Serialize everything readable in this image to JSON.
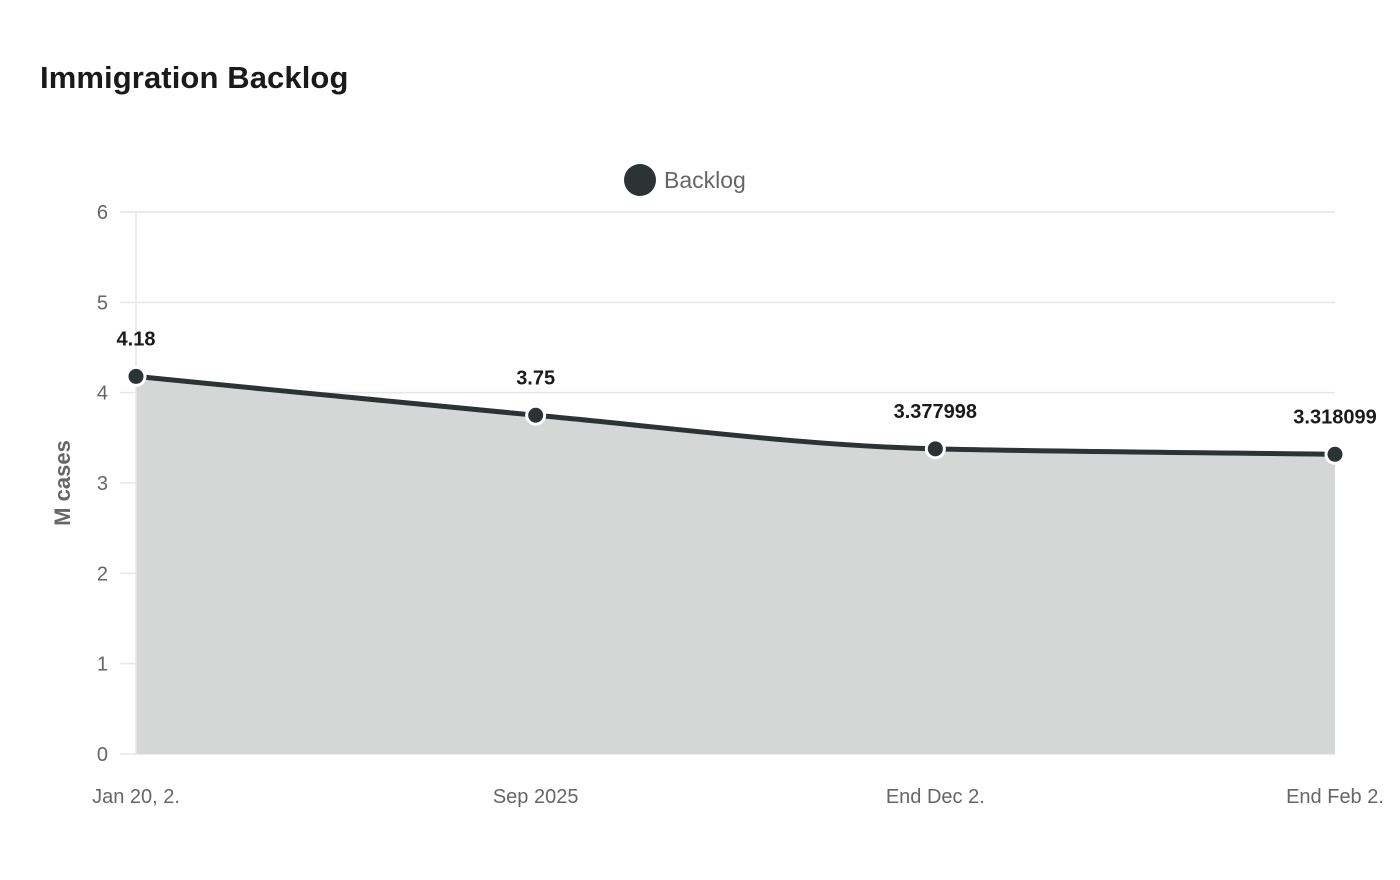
{
  "title": "Immigration Backlog",
  "chart_data": {
    "type": "area",
    "title": "Immigration Backlog",
    "xlabel": "",
    "ylabel": "M cases",
    "categories": [
      "Jan 20, 2.",
      "Sep 2025",
      "End Dec 2.",
      "End Feb 2."
    ],
    "series": [
      {
        "name": "Backlog",
        "values": [
          4.18,
          3.75,
          3.377998,
          3.318099
        ],
        "labels": [
          "4.18",
          "3.75",
          "3.377998",
          "3.318099"
        ]
      }
    ],
    "ylim": [
      0,
      6
    ],
    "yticks": [
      "0",
      "1",
      "2",
      "3",
      "4",
      "5",
      "6"
    ],
    "grid": true,
    "legend_position": "top",
    "colors": {
      "line": "#2c3335",
      "fill": "#d5d7d6",
      "marker_stroke": "#ffffff",
      "grid": "#e6e6e6"
    }
  }
}
